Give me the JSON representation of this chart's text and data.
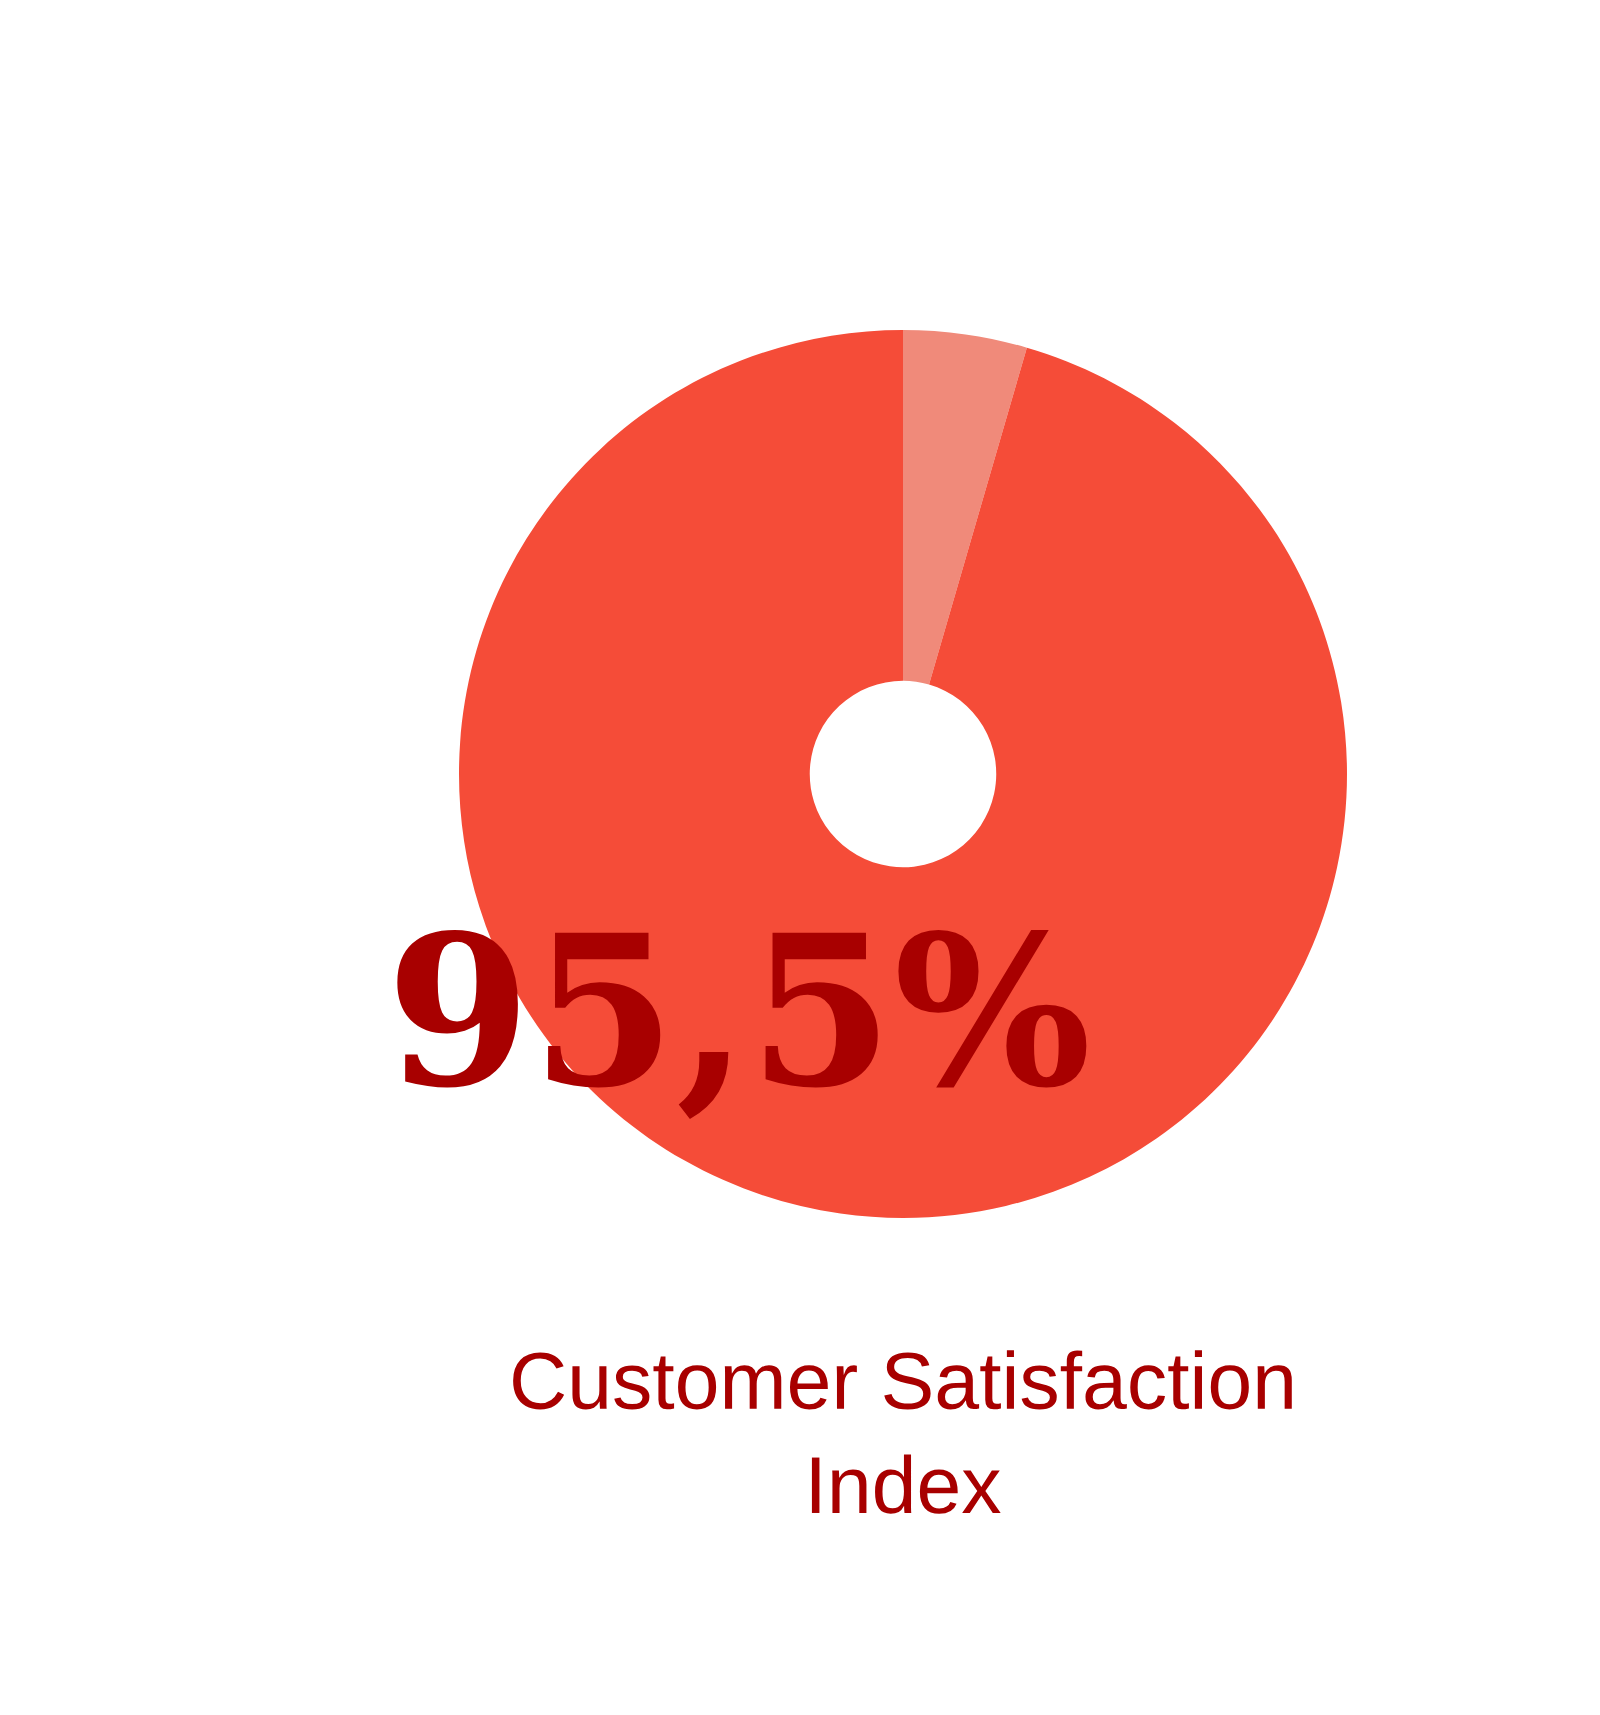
{
  "chart_data": {
    "type": "donut",
    "title": "Customer Satisfaction\nIndex",
    "categories": [
      null,
      null
    ],
    "values": [
      4.5,
      95.5
    ],
    "colors": [
      "#f08a7a",
      "#f54c38"
    ],
    "value_labels": [
      null,
      "95,5%"
    ],
    "legend": false
  }
}
